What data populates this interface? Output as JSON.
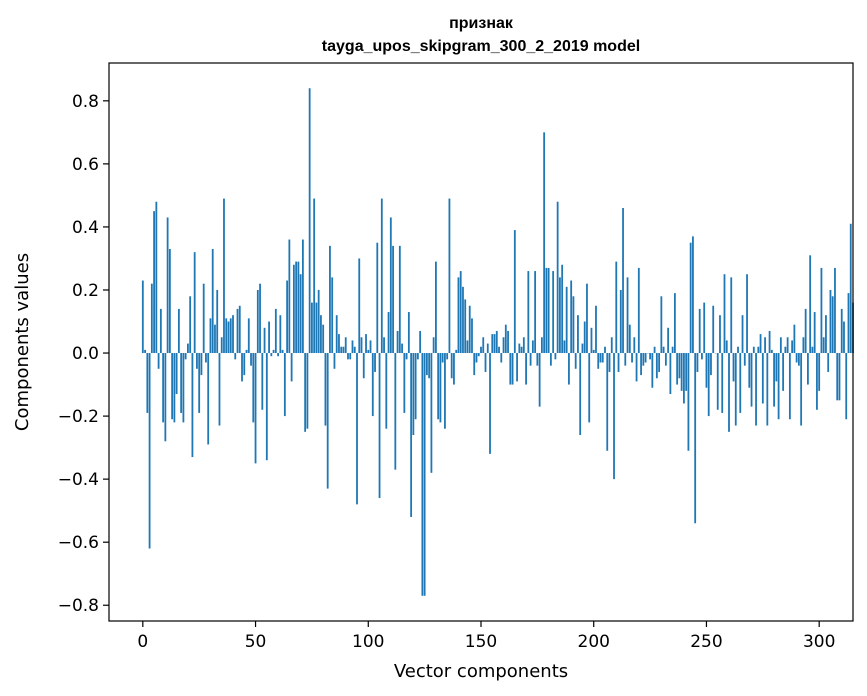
{
  "chart_data": {
    "type": "bar",
    "title": "признак",
    "subtitle": "tayga_upos_skipgram_300_2_2019 model",
    "xlabel": "Vector components",
    "ylabel": "Components values",
    "xlim": [
      -15,
      315
    ],
    "ylim": [
      -0.85,
      0.92
    ],
    "xticks": [
      0,
      50,
      100,
      150,
      200,
      250,
      300
    ],
    "yticks": [
      -0.8,
      -0.6,
      -0.4,
      -0.2,
      0.0,
      0.2,
      0.4,
      0.6,
      0.8
    ],
    "ytick_labels": [
      "−0.8",
      "−0.6",
      "−0.4",
      "−0.2",
      "0.0",
      "0.2",
      "0.4",
      "0.6",
      "0.8"
    ],
    "grid": false,
    "color": "#1f77b4",
    "values": [
      0.23,
      0.01,
      -0.19,
      -0.62,
      0.22,
      0.45,
      0.48,
      -0.05,
      0.14,
      -0.22,
      -0.28,
      0.43,
      0.33,
      -0.21,
      -0.22,
      -0.13,
      0.14,
      -0.19,
      -0.22,
      -0.02,
      0.03,
      0.18,
      -0.33,
      0.32,
      -0.05,
      -0.19,
      -0.07,
      0.22,
      -0.03,
      -0.29,
      0.11,
      0.33,
      0.09,
      0.2,
      -0.23,
      0.05,
      0.49,
      0.11,
      0.1,
      0.11,
      0.12,
      -0.02,
      0.14,
      0.15,
      -0.09,
      -0.07,
      0.01,
      0.11,
      -0.04,
      -0.22,
      -0.35,
      0.2,
      0.22,
      -0.18,
      0.08,
      -0.34,
      0.1,
      -0.01,
      0.01,
      0.14,
      -0.01,
      0.12,
      0.01,
      -0.2,
      0.23,
      0.36,
      -0.09,
      0.28,
      0.29,
      0.29,
      0.25,
      0.36,
      -0.25,
      -0.24,
      0.84,
      0.16,
      0.49,
      0.16,
      0.2,
      0.12,
      0.09,
      -0.23,
      -0.43,
      0.34,
      0.24,
      -0.05,
      0.12,
      0.06,
      0.02,
      0.02,
      0.05,
      -0.02,
      -0.02,
      0.04,
      0.02,
      -0.48,
      0.3,
      0.05,
      -0.08,
      0.06,
      0.01,
      0.04,
      -0.2,
      -0.06,
      0.35,
      -0.46,
      0.49,
      0.05,
      -0.24,
      0.13,
      0.43,
      0.34,
      -0.37,
      0.07,
      0.34,
      0.03,
      -0.19,
      -0.02,
      0.13,
      -0.52,
      -0.26,
      -0.21,
      -0.02,
      0.07,
      -0.77,
      -0.77,
      -0.07,
      -0.08,
      -0.38,
      0.05,
      0.29,
      -0.21,
      -0.22,
      -0.03,
      -0.24,
      -0.02,
      0.49,
      -0.08,
      -0.1,
      0.01,
      0.24,
      0.26,
      0.21,
      0.17,
      0.04,
      0.15,
      0.11,
      -0.07,
      -0.03,
      -0.01,
      0.02,
      0.05,
      -0.06,
      0.03,
      -0.32,
      0.06,
      0.06,
      0.07,
      0.02,
      -0.03,
      0.05,
      0.09,
      0.07,
      -0.1,
      -0.1,
      0.39,
      -0.09,
      0.03,
      0.02,
      0.05,
      -0.1,
      0.26,
      -0.04,
      0.04,
      0.26,
      -0.04,
      -0.17,
      0.05,
      0.7,
      0.27,
      0.27,
      -0.04,
      0.26,
      -0.02,
      0.48,
      0.24,
      0.28,
      0.04,
      0.21,
      -0.1,
      0.23,
      0.18,
      -0.05,
      0.12,
      -0.26,
      0.03,
      0.1,
      0.22,
      -0.22,
      0.08,
      0.01,
      0.15,
      -0.05,
      -0.03,
      -0.03,
      0.02,
      -0.31,
      -0.06,
      0.05,
      -0.4,
      0.29,
      -0.06,
      0.2,
      0.46,
      -0.04,
      0.24,
      0.09,
      -0.03,
      0.05,
      -0.09,
      0.27,
      -0.07,
      -0.04,
      -0.03,
      0.0,
      -0.02,
      -0.11,
      0.02,
      -0.08,
      -0.06,
      0.18,
      0.02,
      -0.04,
      0.08,
      -0.13,
      0.02,
      0.19,
      -0.1,
      -0.08,
      -0.12,
      -0.16,
      -0.12,
      -0.31,
      0.35,
      0.37,
      -0.54,
      -0.06,
      0.14,
      -0.02,
      0.16,
      -0.11,
      -0.2,
      -0.07,
      0.15,
      0.0,
      -0.18,
      0.12,
      -0.19,
      0.25,
      0.04,
      -0.25,
      0.24,
      -0.09,
      -0.23,
      0.02,
      -0.19,
      0.12,
      -0.04,
      0.25,
      -0.11,
      -0.17,
      0.02,
      -0.23,
      0.02,
      0.06,
      -0.16,
      0.05,
      -0.23,
      0.07,
      0.01,
      -0.17,
      -0.09,
      -0.21,
      0.05,
      -0.12,
      0.02,
      0.05,
      -0.21,
      0.04,
      0.09,
      -0.03,
      -0.04,
      -0.23,
      0.05,
      0.14,
      -0.1,
      0.31,
      0.02,
      0.13,
      -0.18,
      -0.12,
      0.27,
      0.05,
      0.12,
      -0.06,
      0.2,
      0.18,
      0.27,
      -0.15,
      -0.15,
      0.14,
      0.1,
      -0.21,
      0.19,
      0.41,
      0.16
    ]
  }
}
